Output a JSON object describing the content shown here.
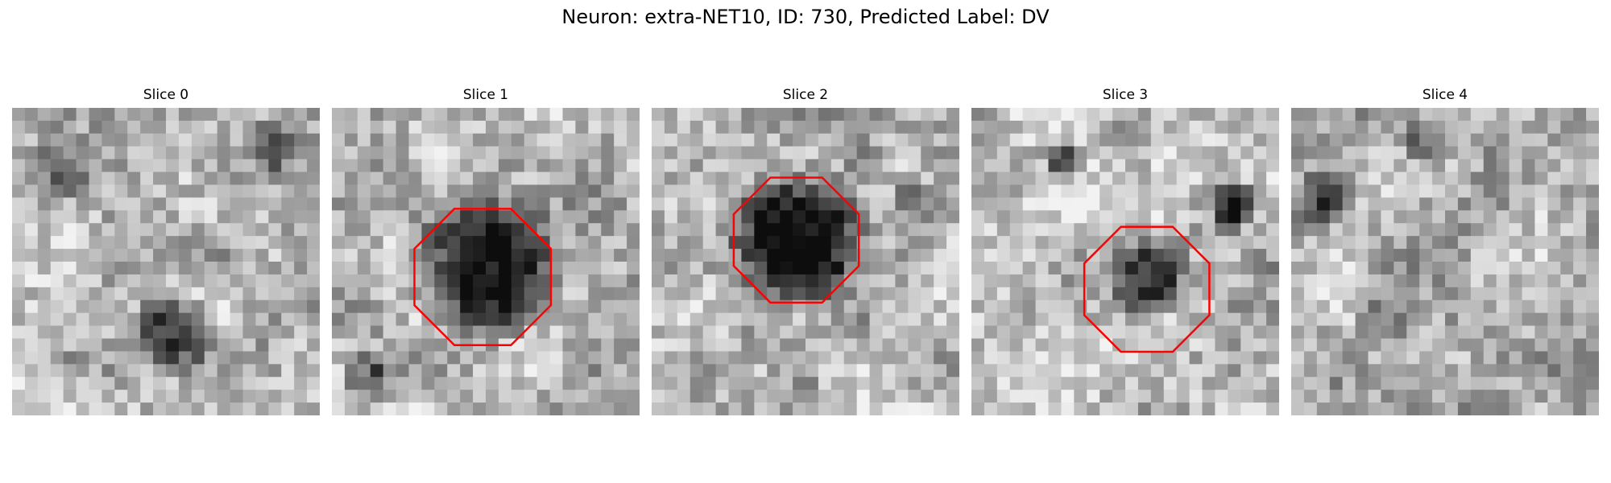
{
  "figure": {
    "title": "Neuron: extra-NET10, ID: 730, Predicted Label: DV"
  },
  "panels": [
    {
      "title": "Slice 0",
      "seed": 11,
      "outline": false,
      "dark_spots": [
        [
          0.52,
          0.74,
          0.16,
          0.55
        ],
        [
          0.85,
          0.12,
          0.12,
          0.35
        ],
        [
          0.15,
          0.22,
          0.12,
          0.25
        ]
      ]
    },
    {
      "title": "Slice 1",
      "seed": 23,
      "outline": true,
      "center": [
        0.49,
        0.55
      ],
      "radius": 0.24,
      "dark_spots": [
        [
          0.5,
          0.52,
          0.27,
          0.72
        ],
        [
          0.12,
          0.88,
          0.1,
          0.35
        ]
      ]
    },
    {
      "title": "Slice 2",
      "seed": 37,
      "outline": true,
      "center": [
        0.47,
        0.43
      ],
      "radius": 0.22,
      "dark_spots": [
        [
          0.47,
          0.43,
          0.26,
          0.8
        ],
        [
          0.85,
          0.3,
          0.08,
          0.25
        ]
      ]
    },
    {
      "title": "Slice 3",
      "seed": 41,
      "outline": true,
      "center": [
        0.57,
        0.59
      ],
      "radius": 0.22,
      "dark_spots": [
        [
          0.57,
          0.54,
          0.17,
          0.55
        ],
        [
          0.3,
          0.17,
          0.08,
          0.45
        ],
        [
          0.85,
          0.32,
          0.09,
          0.5
        ]
      ]
    },
    {
      "title": "Slice 4",
      "seed": 53,
      "outline": false,
      "dark_spots": [
        [
          0.45,
          0.12,
          0.1,
          0.4
        ],
        [
          0.1,
          0.3,
          0.1,
          0.35
        ],
        [
          0.3,
          0.68,
          0.1,
          0.3
        ]
      ]
    }
  ],
  "colors": {
    "outline": "#ff0000",
    "background": "#ffffff"
  }
}
